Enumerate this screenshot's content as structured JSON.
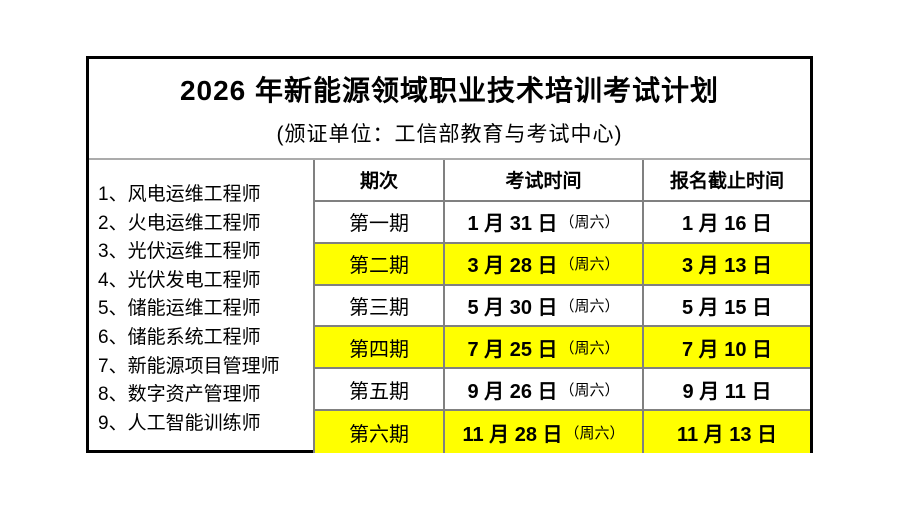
{
  "title": "2026 年新能源领域职业技术培训考试计划",
  "subtitle": "(颁证单位：工信部教育与考试中心)",
  "certifications": {
    "items": [
      "1、风电运维工程师",
      "2、火电运维工程师",
      "3、光伏运维工程师",
      "4、光伏发电工程师",
      "5、储能运维工程师",
      "6、储能系统工程师",
      "7、新能源项目管理师",
      "8、数字资产管理师",
      "9、人工智能训练师"
    ]
  },
  "schedule": {
    "headers": {
      "period": "期次",
      "exam_time": "考试时间",
      "deadline": "报名截止时间"
    },
    "rows": [
      {
        "period": "第一期",
        "exam_date": "1 月 31 日",
        "exam_note": "（周六）",
        "deadline": "1 月 16 日",
        "highlight": false
      },
      {
        "period": "第二期",
        "exam_date": "3 月 28 日",
        "exam_note": "（周六）",
        "deadline": "3 月 13 日",
        "highlight": true
      },
      {
        "period": "第三期",
        "exam_date": "5 月 30 日",
        "exam_note": "（周六）",
        "deadline": "5 月 15 日",
        "highlight": false
      },
      {
        "period": "第四期",
        "exam_date": "7 月 25 日",
        "exam_note": "（周六）",
        "deadline": "7 月 10 日",
        "highlight": true
      },
      {
        "period": "第五期",
        "exam_date": "9 月 26 日",
        "exam_note": "（周六）",
        "deadline": "9 月 11 日",
        "highlight": false
      },
      {
        "period": "第六期",
        "exam_date": "11 月 28 日",
        "exam_note": "（周六）",
        "deadline": "11 月 13 日",
        "highlight": true
      }
    ]
  },
  "colors": {
    "highlight": "#FFFF00",
    "grid_line": "#808080",
    "outer_border": "#000000",
    "text": "#000000",
    "background": "#FFFFFF"
  }
}
